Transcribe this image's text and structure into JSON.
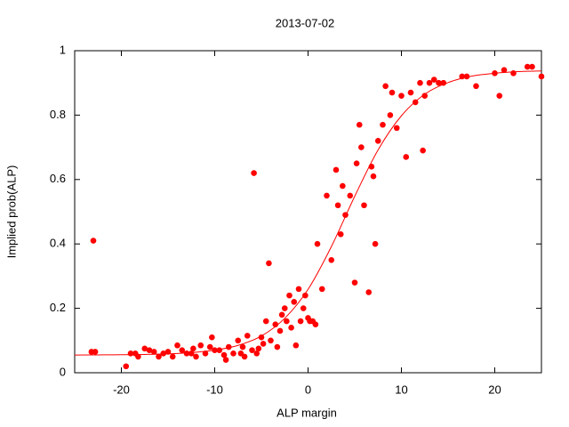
{
  "chart_data": {
    "type": "scatter",
    "title": "2013-07-02",
    "xlabel": "ALP margin",
    "ylabel": "Implied prob(ALP)",
    "xlim": [
      -25,
      25
    ],
    "ylim": [
      0,
      1
    ],
    "xticks": [
      -20,
      -10,
      0,
      10,
      20
    ],
    "yticks": [
      0,
      0.2,
      0.4,
      0.6,
      0.8,
      1
    ],
    "grid": false,
    "series": [
      {
        "type": "scatter",
        "color": "#ff0000",
        "x": [
          -23.2,
          -22.8,
          -23,
          -19.5,
          -19,
          -18.5,
          -18.2,
          -17.5,
          -17,
          -16.5,
          -16,
          -15.5,
          -15,
          -14.5,
          -14,
          -13.5,
          -13,
          -12.5,
          -12.3,
          -12,
          -11.5,
          -11,
          -10.5,
          -10.3,
          -10,
          -9.5,
          -9,
          -8.8,
          -8.5,
          -8,
          -7.5,
          -7.2,
          -7,
          -6.8,
          -6.5,
          -6,
          -5.8,
          -5.5,
          -5.3,
          -5,
          -4.8,
          -4.5,
          -4.2,
          -4,
          -3.5,
          -3.3,
          -3,
          -2.8,
          -2.5,
          -2.3,
          -2,
          -1.8,
          -1.5,
          -1.3,
          -1,
          -0.8,
          -0.5,
          -0.3,
          0,
          0.2,
          0.5,
          0.8,
          1,
          1.5,
          2,
          2.5,
          3,
          3.2,
          3.5,
          3.7,
          4,
          4.5,
          5,
          5.2,
          5.5,
          5.7,
          6,
          6.5,
          6.8,
          7,
          7.2,
          7.5,
          8,
          8.3,
          8.8,
          9,
          9.5,
          10,
          10.5,
          11,
          11.5,
          12,
          12.3,
          12.5,
          13,
          13.5,
          14,
          14.5,
          16.5,
          17,
          18,
          20,
          20.5,
          21,
          22,
          23.5,
          24,
          25
        ],
        "values": [
          0.065,
          0.065,
          0.41,
          0.02,
          0.06,
          0.06,
          0.05,
          0.075,
          0.07,
          0.065,
          0.05,
          0.06,
          0.065,
          0.05,
          0.085,
          0.07,
          0.06,
          0.06,
          0.075,
          0.05,
          0.085,
          0.06,
          0.08,
          0.11,
          0.07,
          0.07,
          0.055,
          0.04,
          0.08,
          0.06,
          0.1,
          0.06,
          0.08,
          0.05,
          0.115,
          0.07,
          0.62,
          0.06,
          0.075,
          0.11,
          0.09,
          0.16,
          0.34,
          0.1,
          0.15,
          0.08,
          0.13,
          0.18,
          0.2,
          0.16,
          0.24,
          0.14,
          0.22,
          0.085,
          0.26,
          0.16,
          0.2,
          0.24,
          0.17,
          0.16,
          0.16,
          0.15,
          0.4,
          0.26,
          0.55,
          0.35,
          0.63,
          0.52,
          0.43,
          0.58,
          0.49,
          0.55,
          0.28,
          0.65,
          0.77,
          0.7,
          0.52,
          0.25,
          0.64,
          0.61,
          0.4,
          0.72,
          0.77,
          0.89,
          0.8,
          0.87,
          0.76,
          0.86,
          0.67,
          0.87,
          0.84,
          0.9,
          0.69,
          0.86,
          0.9,
          0.91,
          0.9,
          0.9,
          0.92,
          0.92,
          0.89,
          0.93,
          0.86,
          0.94,
          0.93,
          0.95,
          0.95,
          0.92
        ]
      },
      {
        "type": "line",
        "color": "#ff0000",
        "x": [
          -25,
          -22.5,
          -20,
          -17.5,
          -15,
          -12.5,
          -10,
          -7.5,
          -5,
          -2.5,
          0,
          2.5,
          5,
          7.5,
          10,
          12.5,
          15,
          17.5,
          20,
          22.5,
          25
        ],
        "values": [
          0.055,
          0.0554,
          0.0559,
          0.0568,
          0.0586,
          0.0625,
          0.07,
          0.085,
          0.114,
          0.169,
          0.259,
          0.392,
          0.548,
          0.692,
          0.798,
          0.865,
          0.901,
          0.921,
          0.93,
          0.935,
          0.937
        ]
      }
    ]
  }
}
